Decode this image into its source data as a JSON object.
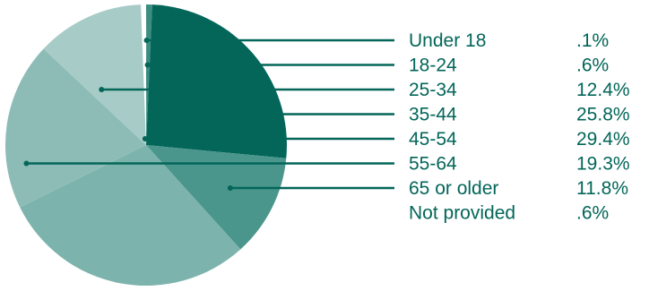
{
  "chart_data": {
    "type": "pie",
    "title": "",
    "categories": [
      "Under 18",
      "18-24",
      "25-34",
      "35-44",
      "45-54",
      "55-64",
      "65 or older",
      "Not provided"
    ],
    "value_labels": [
      ".1%",
      ".6%",
      "12.4%",
      "25.8%",
      "29.4%",
      "19.3%",
      "11.8%",
      ".6%"
    ],
    "values": [
      0.1,
      0.6,
      12.4,
      25.8,
      29.4,
      19.3,
      11.8,
      0.6
    ],
    "colors": [
      "#2f8478",
      "#3c8d81",
      "#a7cbc7",
      "#036659",
      "#7db3ad",
      "#8dbcb6",
      "#4b968c",
      "#6aa39b"
    ],
    "accent_color": "#036659",
    "legend_placement": "right"
  }
}
